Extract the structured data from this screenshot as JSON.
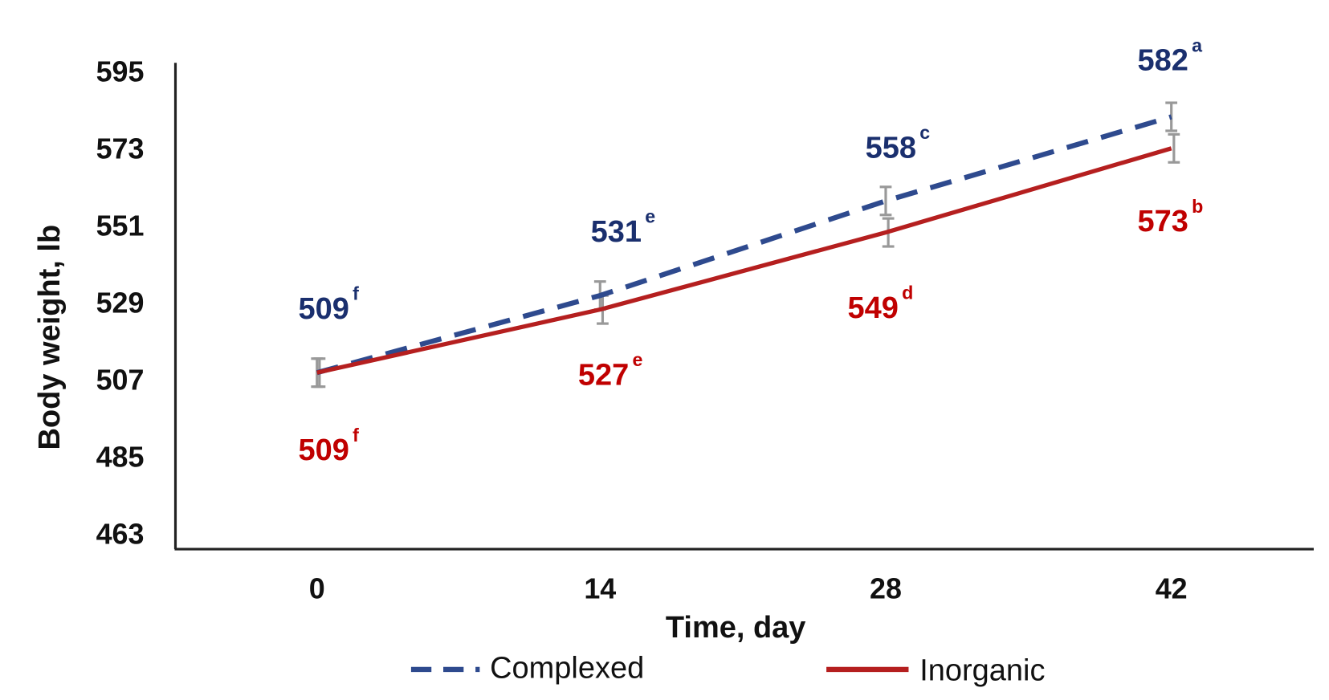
{
  "chart_data": {
    "type": "line",
    "title": "",
    "xlabel": "Time, day",
    "ylabel": "Body weight, lb",
    "x": [
      0,
      14,
      28,
      42
    ],
    "x_tick_labels": [
      "0",
      "14",
      "28",
      "42"
    ],
    "y_tick_labels": [
      "463",
      "485",
      "507",
      "529",
      "551",
      "573",
      "595"
    ],
    "ylim": [
      463,
      595
    ],
    "grid": false,
    "legend_position": "bottom",
    "series": [
      {
        "name": "Complexed",
        "style": "dashed",
        "color": "#2e4a8e",
        "label_color": "#1a2f6e",
        "values": [
          509,
          531,
          558,
          582
        ],
        "error": [
          4,
          4,
          4,
          4
        ],
        "labels": [
          {
            "value": "509",
            "letter": "f"
          },
          {
            "value": "531",
            "letter": "e"
          },
          {
            "value": "558",
            "letter": "c"
          },
          {
            "value": "582",
            "letter": "a"
          }
        ]
      },
      {
        "name": "Inorganic",
        "style": "solid",
        "color": "#b51f1f",
        "label_color": "#c00000",
        "values": [
          509,
          527,
          549,
          573
        ],
        "error": [
          4,
          4,
          4,
          4
        ],
        "labels": [
          {
            "value": "509",
            "letter": "f"
          },
          {
            "value": "527",
            "letter": "e"
          },
          {
            "value": "549",
            "letter": "d"
          },
          {
            "value": "573",
            "letter": "b"
          }
        ]
      }
    ]
  }
}
